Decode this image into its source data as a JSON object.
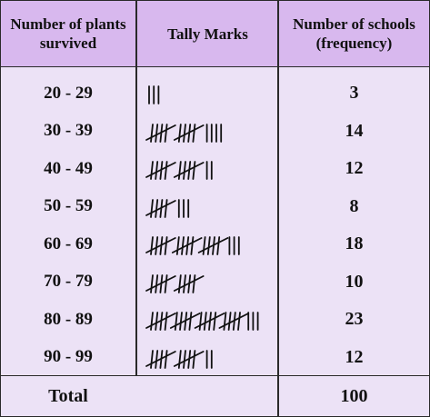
{
  "header": {
    "plants": "Number of plants survived",
    "tally": "Tally Marks",
    "schools": "Number of schools (frequency)"
  },
  "rows": [
    {
      "range": "20 - 29",
      "frequency": "3",
      "tally_count": 3
    },
    {
      "range": "30 - 39",
      "frequency": "14",
      "tally_count": 14
    },
    {
      "range": "40 - 49",
      "frequency": "12",
      "tally_count": 12
    },
    {
      "range": "50 - 59",
      "frequency": "8",
      "tally_count": 8
    },
    {
      "range": "60 - 69",
      "frequency": "18",
      "tally_count": 18
    },
    {
      "range": "70 - 79",
      "frequency": "10",
      "tally_count": 10
    },
    {
      "range": "80 - 89",
      "frequency": "23",
      "tally_count": 23
    },
    {
      "range": "90 - 99",
      "frequency": "12",
      "tally_count": 12
    }
  ],
  "total": {
    "label": "Total",
    "value": "100"
  },
  "colors": {
    "header_bg": "#d8b8ee",
    "body_bg": "#ece2f6",
    "ink": "#111111"
  }
}
